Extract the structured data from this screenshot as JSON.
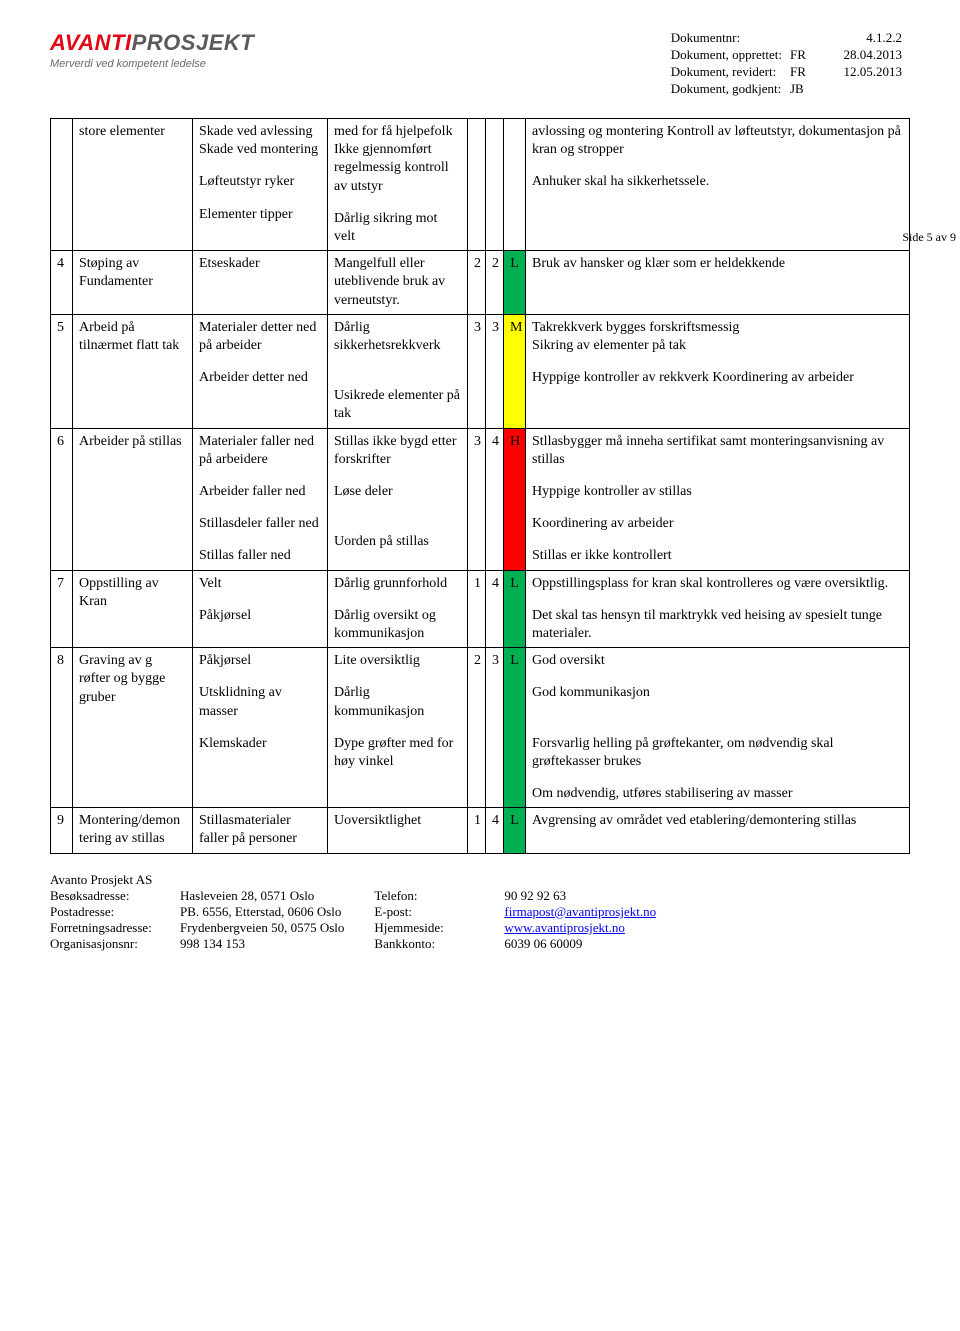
{
  "header": {
    "logo_main1": "AVANTI",
    "logo_main2": "PROSJEKT",
    "logo_tagline": "Merverdi ved kompetent ledelse",
    "meta": [
      {
        "label": "Dokumentnr:",
        "mid": "",
        "val": "4.1.2.2"
      },
      {
        "label": "Dokument, opprettet:",
        "mid": "FR",
        "val": "28.04.2013"
      },
      {
        "label": "Dokument, revidert:",
        "mid": "FR",
        "val": "12.05.2013"
      },
      {
        "label": "Dokument, godkjent:",
        "mid": "JB",
        "val": ""
      }
    ]
  },
  "side_note": "Side 5 av 9",
  "rows": [
    {
      "num": "",
      "activity": "store elementer",
      "hazard": "Skade ved avlessing\nSkade ved montering\n\nLøfteutstyr ryker\n\nElementer tipper",
      "cause": "med for få hjelpefolk Ikke gjennomført regelmessig kontroll av utstyr\n\nDårlig sikring mot velt",
      "p": "",
      "c": "",
      "r": "",
      "rclass": "",
      "measure": "avlossing og montering Kontroll av løfteutstyr, dokumentasjon på kran og stropper\n\nAnhuker skal ha sikkerhetssele."
    },
    {
      "num": "4",
      "activity": "Støping av Fundamenter",
      "hazard": "Etseskader",
      "cause": "Mangelfull eller uteblivende bruk av verneutstyr.",
      "p": "2",
      "c": "2",
      "r": "L",
      "rclass": "r-L",
      "measure": "Bruk av hansker og klær som er heldekkende"
    },
    {
      "num": "5",
      "activity": "Arbeid på tilnærmet flatt tak",
      "hazard": "Materialer detter ned på arbeider\n\nArbeider detter ned",
      "cause": "Dårlig sikkerhetsrekkverk\n\n\nUsikrede elementer på tak",
      "p": "3",
      "c": "3",
      "r": "M",
      "rclass": "r-M",
      "measure": "Takrekkverk bygges forskriftsmessig\nSikring av elementer på tak\n\nHyppige kontroller av rekkverk Koordinering av arbeider"
    },
    {
      "num": "6",
      "activity": "Arbeider på stillas",
      "hazard": "Materialer faller ned på arbeidere\n\nArbeider faller ned\n\nStillasdeler faller ned\n\nStillas faller ned",
      "cause": "Stillas ikke bygd etter forskrifter\n\nLøse deler\n\n\nUorden på stillas",
      "p": "3",
      "c": "4",
      "r": "H",
      "rclass": "r-H",
      "measure": "Stllasbygger må inneha sertifikat samt monteringsanvisning av stillas\n\nHyppige kontroller av stillas\n\nKoordinering av arbeider\n\nStillas er ikke kontrollert"
    },
    {
      "num": "7",
      "activity": "Oppstilling av Kran",
      "hazard": "Velt\n\n\n\nPåkjørsel",
      "cause": "Dårlig grunnforhold\n\n\n\nDårlig oversikt og kommunikasjon",
      "p": "1",
      "c": "4",
      "r": "L",
      "rclass": "r-L",
      "measure": "Oppstillingsplass for kran skal kontrolleres og være oversiktlig.\n\nDet skal tas hensyn til marktrykk ved heising av spesielt tunge materialer."
    },
    {
      "num": "8",
      "activity": "Graving av g røfter og bygge gruber",
      "hazard": "Påkjørsel\n\nUtsklidning av masser\n\nKlemskader",
      "cause": "Lite oversiktlig\n\nDårlig kommunikasjon\n\nDype grøfter med for høy vinkel",
      "p": "2",
      "c": "3",
      "r": "L",
      "rclass": "r-L",
      "measure": "God oversikt\n\nGod kommunikasjon\n\n\nForsvarlig helling på grøftekanter, om nødvendig skal grøftekasser brukes\n\nOm nødvendig, utføres stabilisering av masser"
    },
    {
      "num": "9",
      "activity": "Montering/demon tering av stillas",
      "hazard": "Stillasmaterialer faller på personer",
      "cause": "Uoversiktlighet",
      "p": "1",
      "c": "4",
      "r": "L",
      "rclass": "r-L",
      "measure": "Avgrensing av området ved etablering/demontering stillas"
    }
  ],
  "footer": {
    "company": "Avanto Prosjekt AS",
    "left": [
      {
        "lbl": "Besøksadresse:",
        "val": "Hasleveien 28, 0571 Oslo"
      },
      {
        "lbl": "Postadresse:",
        "val": "PB. 6556, Etterstad, 0606 Oslo"
      },
      {
        "lbl": "Forretningsadresse:",
        "val": "Frydenbergveien 50, 0575 Oslo"
      },
      {
        "lbl": "Organisasjonsnr:",
        "val": "998 134 153"
      }
    ],
    "right": [
      {
        "lbl": "Telefon:",
        "val": "90 92 92 63",
        "link": false
      },
      {
        "lbl": "E-post:",
        "val": "firmapost@avantiprosjekt.no",
        "link": true
      },
      {
        "lbl": "Hjemmeside:",
        "val": "www.avantiprosjekt.no",
        "link": true
      },
      {
        "lbl": "Bankkonto:",
        "val": "6039 06 60009",
        "link": false
      }
    ]
  }
}
